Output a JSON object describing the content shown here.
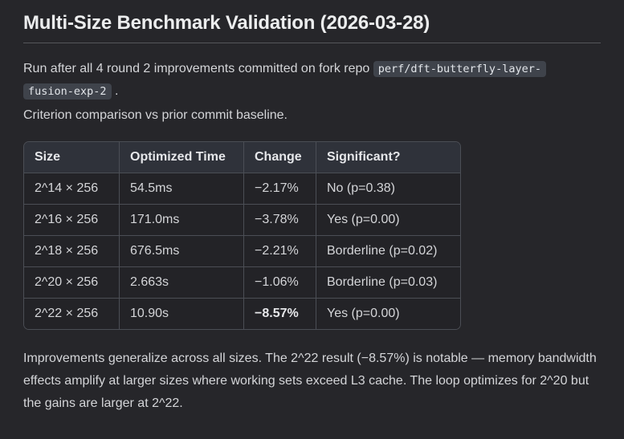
{
  "page": {
    "title": "Multi-Size Benchmark Validation (2026-03-28)"
  },
  "intro": {
    "text_before_code": "Run after all 4 round 2 improvements committed on fork repo ",
    "repo_code_line1": "perf/dft-butterfly-layer-",
    "repo_code_line2": "fusion-exp-2",
    "text_after_code": " .",
    "criterion_line": "Criterion comparison vs prior commit baseline."
  },
  "table": {
    "headers": [
      "Size",
      "Optimized Time",
      "Change",
      "Significant?"
    ],
    "rows": [
      {
        "size": "2^14 × 256",
        "optimized_time": "54.5ms",
        "change": "−2.17%",
        "significant": "No (p=0.38)",
        "change_bold": false
      },
      {
        "size": "2^16 × 256",
        "optimized_time": "171.0ms",
        "change": "−3.78%",
        "significant": "Yes (p=0.00)",
        "change_bold": false
      },
      {
        "size": "2^18 × 256",
        "optimized_time": "676.5ms",
        "change": "−2.21%",
        "significant": "Borderline (p=0.02)",
        "change_bold": false
      },
      {
        "size": "2^20 × 256",
        "optimized_time": "2.663s",
        "change": "−1.06%",
        "significant": "Borderline (p=0.03)",
        "change_bold": false
      },
      {
        "size": "2^22 × 256",
        "optimized_time": "10.90s",
        "change": "−8.57%",
        "significant": "Yes (p=0.00)",
        "change_bold": true
      }
    ]
  },
  "summary": {
    "text": "Improvements generalize across all sizes. The 2^22 result (−8.57%) is notable — memory bandwidth effects amplify at larger sizes where working sets exceed L3 cache. The loop optimizes for 2^20 but the gains are larger at 2^22."
  },
  "colors": {
    "page_bg": "#26262a",
    "cell_bg": "#232327",
    "header_bg": "#2f323a",
    "border": "#4b4e55",
    "text": "#d4d5d8",
    "heading_text": "#ecedee",
    "code_bg": "#3f434b"
  }
}
